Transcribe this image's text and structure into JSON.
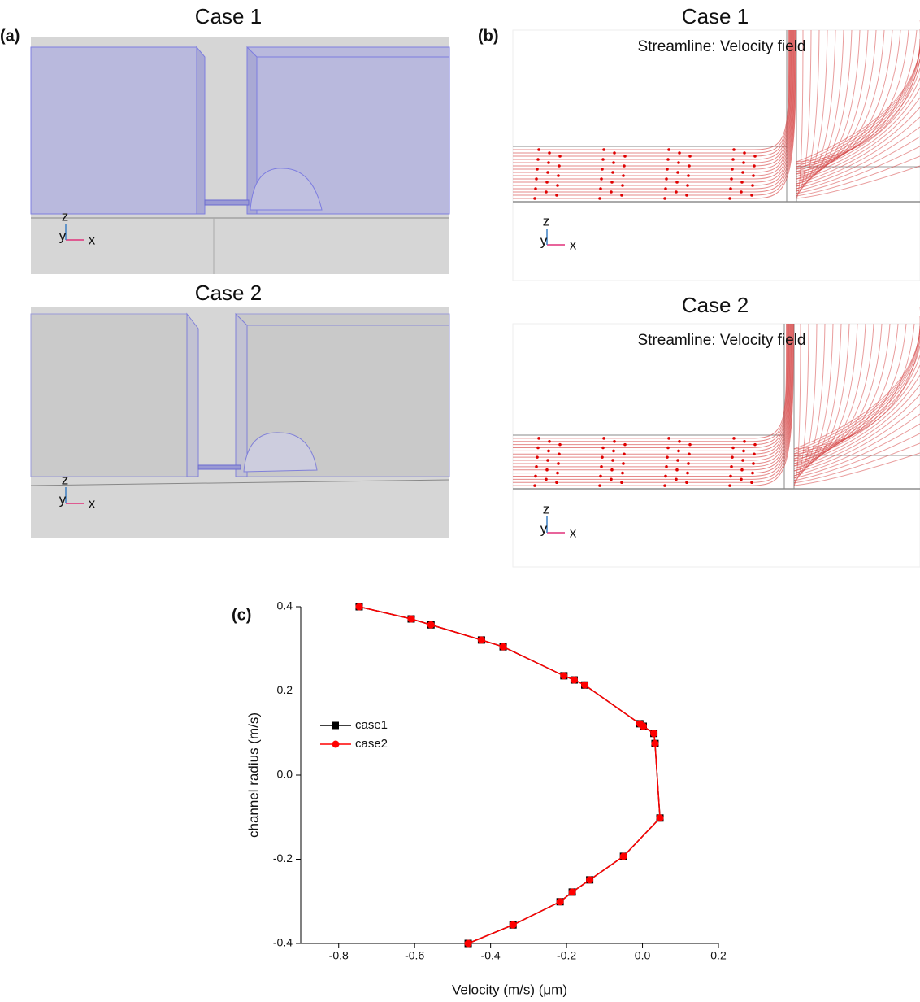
{
  "panel_a": {
    "label": "(a)",
    "views": [
      {
        "title": "Case 1",
        "axes": [
          "z",
          "y",
          "x"
        ]
      },
      {
        "title": "Case 2",
        "axes": [
          "z",
          "y",
          "x"
        ]
      }
    ]
  },
  "panel_b": {
    "label": "(b)",
    "views": [
      {
        "title": "Case 1",
        "subtitle": "Streamline: Velocity field",
        "axes": [
          "z",
          "y",
          "x"
        ]
      },
      {
        "title": "Case 2",
        "subtitle": "Streamline: Velocity field",
        "axes": [
          "z",
          "y",
          "x"
        ]
      }
    ]
  },
  "panel_c": {
    "label": "(c)"
  },
  "chart_data": {
    "type": "line",
    "x_label": "Velocity (m/s) (μm)",
    "y_label": "channel radius (m/s)",
    "x": [
      -0.746,
      -0.609,
      -0.557,
      -0.424,
      -0.367,
      -0.207,
      -0.18,
      -0.152,
      -0.007,
      0.002,
      0.03,
      0.033,
      0.046,
      -0.05,
      -0.139,
      -0.185,
      -0.217,
      -0.341,
      -0.459
    ],
    "series": [
      {
        "name": "case1",
        "color": "#000000",
        "marker": "square",
        "values": [
          0.4,
          0.371,
          0.357,
          0.321,
          0.305,
          0.236,
          0.226,
          0.214,
          0.122,
          0.116,
          0.099,
          0.075,
          -0.102,
          -0.193,
          -0.249,
          -0.278,
          -0.301,
          -0.356,
          -0.4
        ]
      },
      {
        "name": "case2",
        "color": "#ff0000",
        "marker": "circle",
        "values": [
          0.4,
          0.371,
          0.357,
          0.321,
          0.305,
          0.236,
          0.226,
          0.214,
          0.122,
          0.116,
          0.099,
          0.075,
          -0.102,
          -0.193,
          -0.249,
          -0.278,
          -0.301,
          -0.356,
          -0.4
        ]
      }
    ],
    "xlim": [
      -0.9,
      0.2
    ],
    "xticks": [
      -0.8,
      -0.6,
      -0.4,
      -0.2,
      {
        "value": 0,
        "label": "0.0"
      },
      0.2
    ],
    "ylim": [
      -0.4,
      0.4
    ],
    "yticks": [
      -0.4,
      -0.2,
      {
        "value": 0,
        "label": "0.0"
      },
      0.2,
      0.4
    ]
  }
}
